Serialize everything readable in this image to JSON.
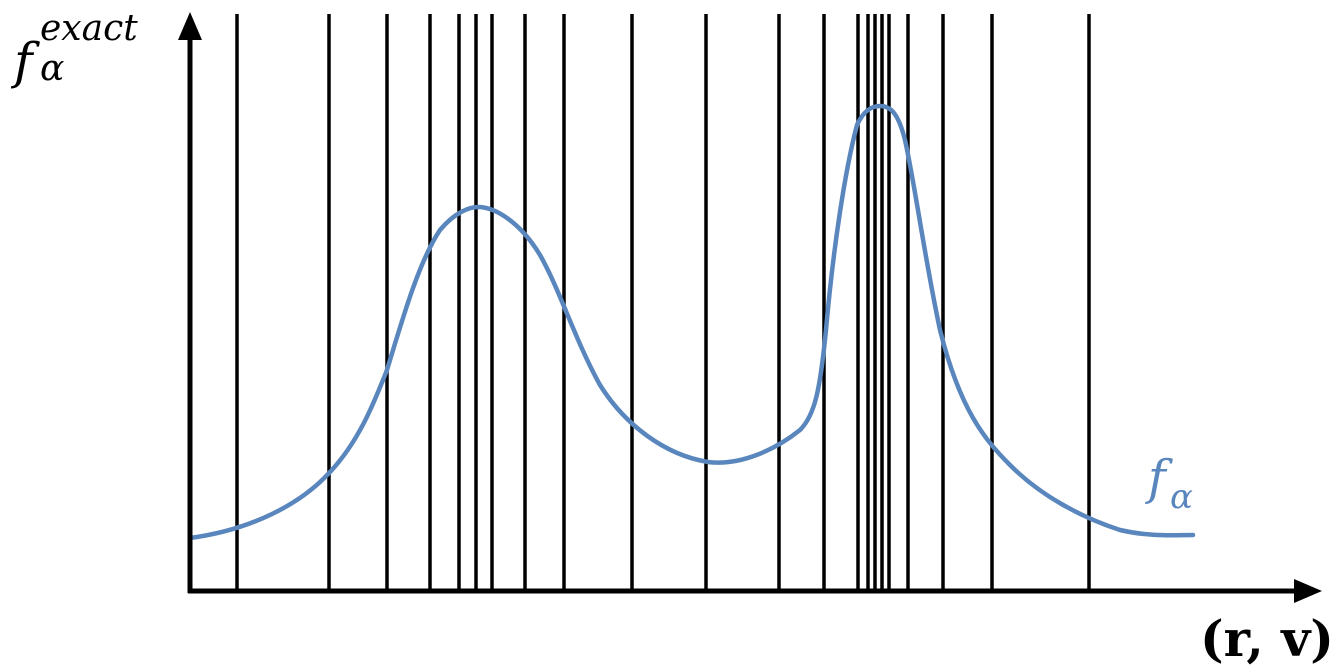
{
  "labels": {
    "y_main": "f",
    "y_superscript": "exact",
    "y_subscript": "α",
    "x_axis": "(r, v)",
    "x_axis_parts": {
      "open": "(",
      "r": "r",
      "comma": ", ",
      "v": "v",
      "close": ")"
    },
    "curve_main": "f",
    "curve_subscript": "α"
  },
  "colors": {
    "curve": "#5a86be",
    "axis": "#000000",
    "grid_line": "#000000"
  }
}
